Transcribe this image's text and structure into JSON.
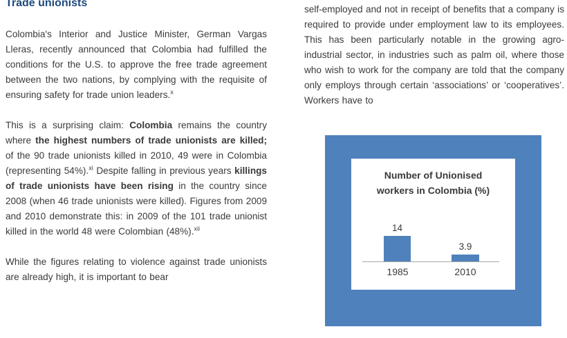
{
  "colors": {
    "heading_blue": "#1f497d",
    "body_text": "#3a3a3a",
    "chart_blue": "#4f81bd",
    "axis_gray": "#a6a6a6"
  },
  "left_column": {
    "heading": "Trade unionists",
    "paragraph1": [
      {
        "t": "Colombia's Interior and Justice Minister, German Vargas Lleras, recently announced that Colombia had fulfilled the conditions for the U.S. to approve the free trade agreement between the two nations, by complying with the requisite of ensuring safety for trade union leaders."
      },
      {
        "t": "x",
        "sup": true
      }
    ],
    "paragraph2": [
      {
        "t": "This is a surprising claim: "
      },
      {
        "t": "Colombia",
        "b": true
      },
      {
        "t": " remains the country where "
      },
      {
        "t": "the highest numbers of trade unionists are killed;",
        "b": true
      },
      {
        "t": " of the 90 trade unionists killed in 2010, 49 were in Colombia (representing 54%)."
      },
      {
        "t": "xi",
        "sup": true
      },
      {
        "t": "  Despite falling in previous years "
      },
      {
        "t": "killings of trade unionists have been rising",
        "b": true
      },
      {
        "t": " in the country since 2008 (when 46 trade unionists were killed). Figures from 2009 and 2010 demonstrate this: in 2009 of the 101 trade unionist killed in the world 48 were Colombian (48%)."
      },
      {
        "t": "xii",
        "sup": true
      }
    ],
    "paragraph3": [
      {
        "t": "While the figures relating to violence against trade unionists are already high, it is important to bear"
      }
    ]
  },
  "right_column": {
    "paragraph1": [
      {
        "t": "self-employed and not in receipt of benefits that a company is required to provide under employment law to its employees. This has been particularly notable in the growing agro-industrial sector, in industries such as palm oil, where those who wish to work for the company are told that the company only employs through certain ‘associations’ or ‘cooperatives’. Workers have to"
      }
    ]
  },
  "chart_data": {
    "type": "bar",
    "title": "Number of Unionised workers in Colombia (%)",
    "categories": [
      "1985",
      "2010"
    ],
    "values": [
      14,
      3.9
    ],
    "data_labels": [
      "14",
      "3.9"
    ],
    "xlabel": "",
    "ylabel": "",
    "ylim": [
      0,
      14
    ],
    "grid": false,
    "legend": false,
    "bar_color": "#4f81bd",
    "frame_color": "#4f81bd",
    "plot_background": "#ffffff",
    "axis_line_color": "#a6a6a6"
  }
}
